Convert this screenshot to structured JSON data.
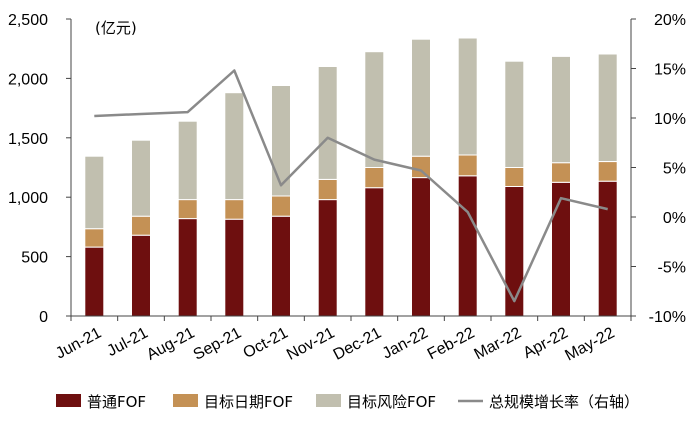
{
  "chart_data": {
    "type": "bar",
    "stacked": true,
    "unit_label": "(亿元)",
    "categories": [
      "Jun-21",
      "Jul-21",
      "Aug-21",
      "Sep-21",
      "Oct-21",
      "Nov-21",
      "Dec-21",
      "Jan-22",
      "Feb-22",
      "Mar-22",
      "Apr-22",
      "May-22"
    ],
    "series": [
      {
        "name": "普通FOF",
        "color": "#6e0f0f",
        "values": [
          580,
          680,
          820,
          815,
          840,
          980,
          1080,
          1165,
          1180,
          1090,
          1125,
          1135
        ]
      },
      {
        "name": "目标日期FOF",
        "color": "#c49155",
        "values": [
          155,
          160,
          160,
          165,
          170,
          170,
          170,
          180,
          175,
          160,
          165,
          165
        ]
      },
      {
        "name": "目标风险FOF",
        "color": "#c1bfaf",
        "values": [
          610,
          640,
          660,
          900,
          930,
          950,
          975,
          985,
          985,
          895,
          895,
          905
        ]
      }
    ],
    "line_series": {
      "name": "总规模增长率（右轴）",
      "color": "#8a8a8a",
      "values": [
        10.2,
        10.4,
        10.6,
        14.8,
        3.2,
        8.0,
        5.8,
        4.7,
        0.5,
        -8.5,
        1.9,
        0.8
      ]
    },
    "y_left": {
      "lim": [
        0,
        2500
      ],
      "ticks": [
        0,
        500,
        1000,
        1500,
        2000,
        2500
      ],
      "tick_labels": [
        "0",
        "500",
        "1,000",
        "1,500",
        "2,000",
        "2,500"
      ]
    },
    "y_right": {
      "lim": [
        -10,
        20
      ],
      "ticks": [
        -10,
        -5,
        0,
        5,
        10,
        15,
        20
      ],
      "tick_labels": [
        "-10%",
        "-5%",
        "0%",
        "5%",
        "10%",
        "15%",
        "20%"
      ]
    },
    "grid": false,
    "legend_placement": "bottom"
  }
}
